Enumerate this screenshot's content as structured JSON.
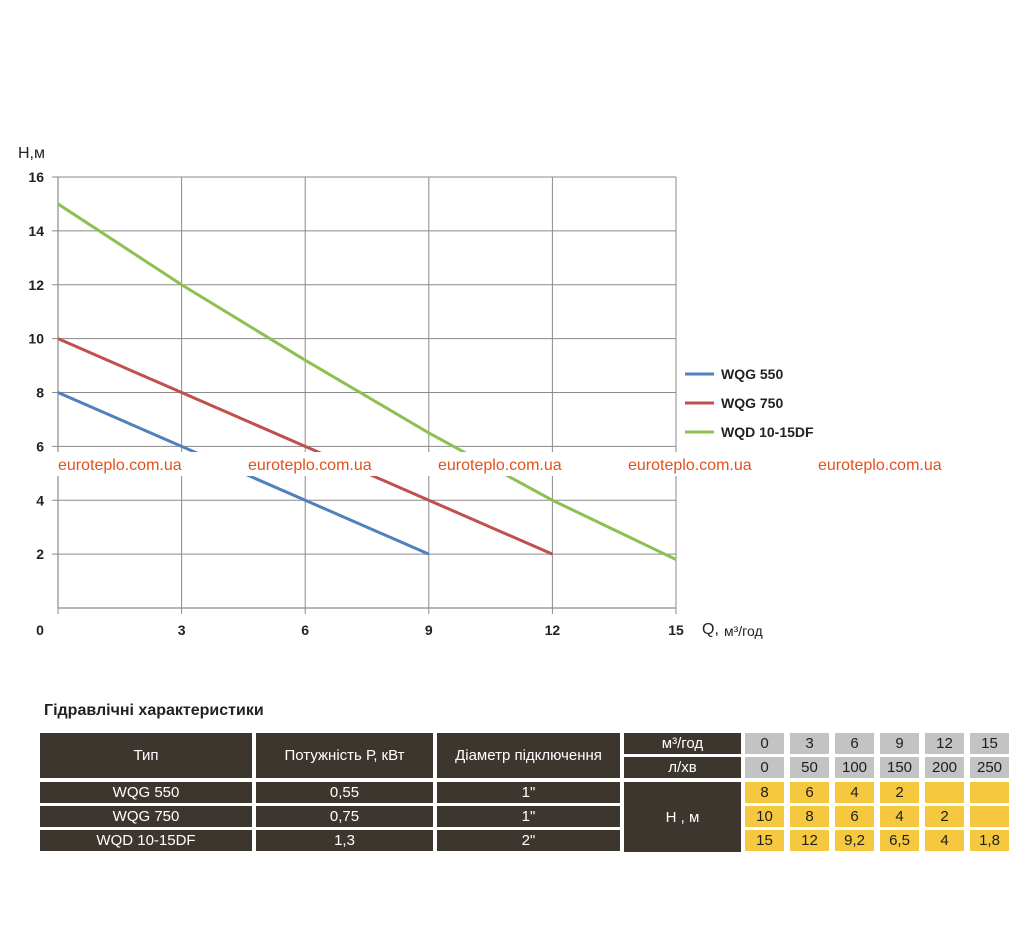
{
  "chart_data": {
    "type": "line",
    "xlabel": "Q,",
    "xunit": "м³/год",
    "ylabel": "H,м",
    "xlim": [
      0,
      15
    ],
    "ylim": [
      0,
      16
    ],
    "x_ticks": [
      "0",
      "3",
      "6",
      "9",
      "12",
      "15"
    ],
    "y_ticks": [
      "2",
      "4",
      "6",
      "8",
      "10",
      "12",
      "14",
      "16"
    ],
    "grid": true,
    "legend_position": "right",
    "series": [
      {
        "name": "WQG 550",
        "color": "#4f81bd",
        "x": [
          0,
          3,
          6,
          9
        ],
        "y": [
          8,
          6,
          4,
          2
        ]
      },
      {
        "name": "WQG 750",
        "color": "#c0504d",
        "x": [
          0,
          3,
          6,
          9,
          12
        ],
        "y": [
          10,
          8,
          6,
          4,
          2
        ]
      },
      {
        "name": "WQD 10-15DF",
        "color": "#8cc152",
        "x": [
          0,
          3,
          6,
          9,
          12,
          15
        ],
        "y": [
          15,
          12,
          9.2,
          6.5,
          4,
          1.8
        ]
      }
    ]
  },
  "watermark": "euroteplo.com.ua",
  "table": {
    "title": "Гідравлічні характеристики",
    "headers": {
      "type": "Тип",
      "power": "Потужність  Р,  кВт",
      "diameter": "Діаметр підключення",
      "flow_unit_m3": "м³/год",
      "flow_unit_l": "л/хв",
      "head": "Н , м"
    },
    "flow_m3": [
      "0",
      "3",
      "6",
      "9",
      "12",
      "15"
    ],
    "flow_l": [
      "0",
      "50",
      "100",
      "150",
      "200",
      "250"
    ],
    "rows": [
      {
        "type": "WQG 550",
        "power": "0,55",
        "diameter": "1\"",
        "heads": [
          "8",
          "6",
          "4",
          "2",
          "",
          ""
        ]
      },
      {
        "type": "WQG 750",
        "power": "0,75",
        "diameter": "1\"",
        "heads": [
          "10",
          "8",
          "6",
          "4",
          "2",
          ""
        ]
      },
      {
        "type": "WQD 10-15DF",
        "power": "1,3",
        "diameter": "2\"",
        "heads": [
          "15",
          "12",
          "9,2",
          "6,5",
          "4",
          "1,8"
        ]
      }
    ]
  }
}
